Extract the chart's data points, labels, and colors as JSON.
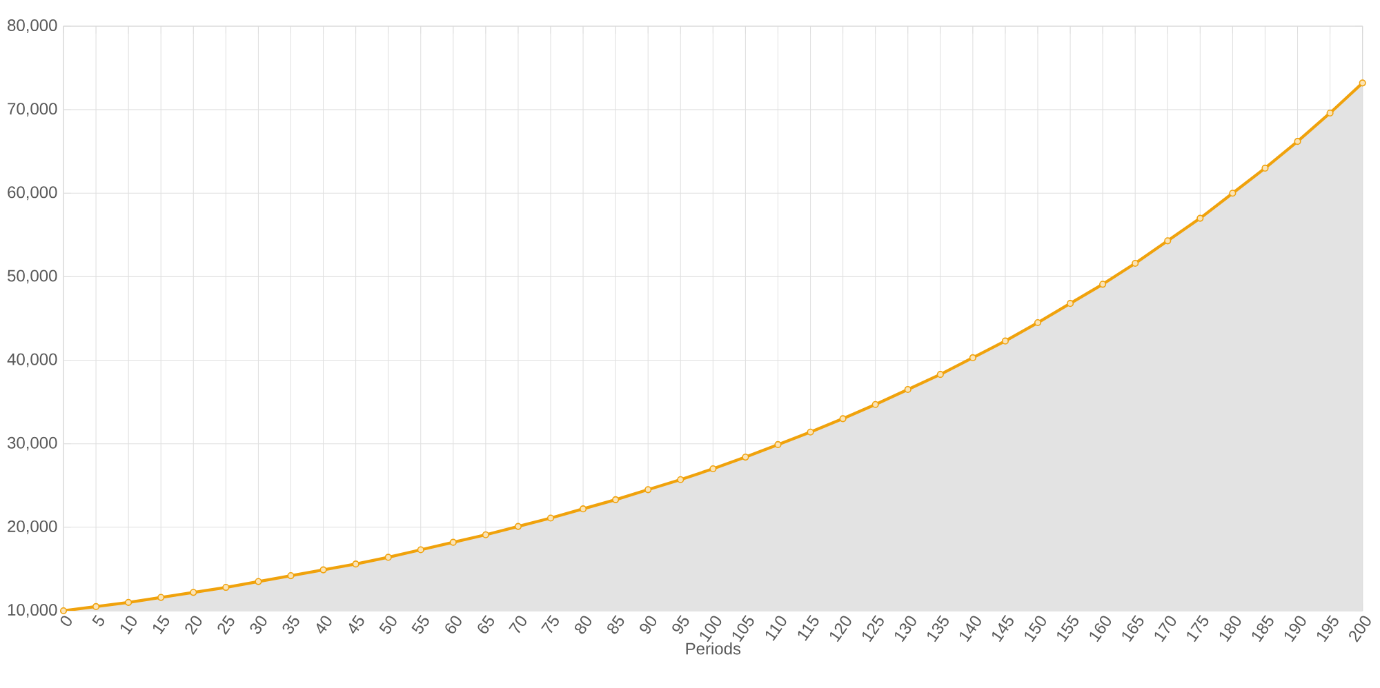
{
  "chart_data": {
    "type": "area",
    "xlabel": "Periods",
    "grid": true,
    "marker": "circle",
    "xlim": [
      0,
      200
    ],
    "xticks": [
      0,
      5,
      10,
      15,
      20,
      25,
      30,
      35,
      40,
      45,
      50,
      55,
      60,
      65,
      70,
      75,
      80,
      85,
      90,
      95,
      100,
      105,
      110,
      115,
      120,
      125,
      130,
      135,
      140,
      145,
      150,
      155,
      160,
      165,
      170,
      175,
      180,
      185,
      190,
      195,
      200
    ],
    "ylim": [
      10000,
      80000
    ],
    "yticks": [
      {
        "value": 10000,
        "label": "10,000"
      },
      {
        "value": 20000,
        "label": "20,000"
      },
      {
        "value": 30000,
        "label": "30,000"
      },
      {
        "value": 40000,
        "label": "40,000"
      },
      {
        "value": 50000,
        "label": "50,000"
      },
      {
        "value": 60000,
        "label": "60,000"
      },
      {
        "value": 70000,
        "label": "70,000"
      },
      {
        "value": 80000,
        "label": "80,000"
      }
    ],
    "x": [
      0,
      5,
      10,
      15,
      20,
      25,
      30,
      35,
      40,
      45,
      50,
      55,
      60,
      65,
      70,
      75,
      80,
      85,
      90,
      95,
      100,
      105,
      110,
      115,
      120,
      125,
      130,
      135,
      140,
      145,
      150,
      155,
      160,
      165,
      170,
      175,
      180,
      185,
      190,
      195,
      200
    ],
    "series": [
      {
        "color": "#f0a20c",
        "values": [
          10000,
          10500,
          11000,
          11600,
          12200,
          12800,
          13500,
          14200,
          14900,
          15600,
          16400,
          17300,
          18200,
          19100,
          20100,
          21100,
          22200,
          23300,
          24500,
          25700,
          27000,
          28400,
          29900,
          31400,
          33000,
          34700,
          36500,
          38300,
          40300,
          42300,
          44500,
          46800,
          49100,
          51600,
          54300,
          57000,
          60000,
          63000,
          66200,
          69600,
          73200
        ]
      }
    ]
  }
}
